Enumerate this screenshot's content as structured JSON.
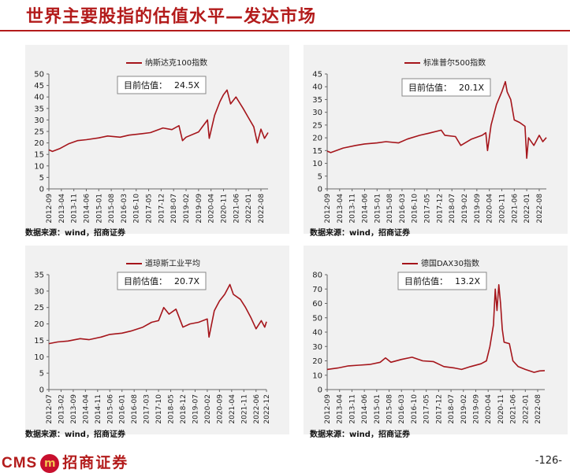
{
  "page": {
    "title": "世界主要股指的估值水平—发达市场",
    "source_note": "数据来源：wind，招商证券",
    "page_number": "-126-",
    "logo": {
      "en": "CMS",
      "badge": "m",
      "cn": "招商证券"
    },
    "colors": {
      "brand": "#b31b1b",
      "series": "#a5151b",
      "panel": "#f1f1f1"
    }
  },
  "chart_data": [
    {
      "type": "line",
      "title": "",
      "legend": "纳斯达克100指数",
      "value_label": "目前估值：",
      "value_text": "24.5X",
      "yticks": [
        0,
        5,
        10,
        15,
        20,
        25,
        30,
        35,
        40,
        45,
        50
      ],
      "ylim": [
        0,
        50
      ],
      "xlim": [
        "2012-09",
        "2022-12"
      ],
      "xticks": [
        "2012-09",
        "2013-04",
        "2013-11",
        "2014-06",
        "2015-01",
        "2015-08",
        "2016-03",
        "2016-10",
        "2017-05",
        "2017-12",
        "2018-07",
        "2019-02",
        "2019-09",
        "2020-04",
        "2020-11",
        "2021-06",
        "2022-01",
        "2022-08"
      ],
      "series": [
        {
          "values": [
            [
              "2012-09",
              17
            ],
            [
              "2012-11",
              16.3
            ],
            [
              "2013-03",
              17.5
            ],
            [
              "2013-08",
              19.6
            ],
            [
              "2014-01",
              21
            ],
            [
              "2014-06",
              21.4
            ],
            [
              "2015-01",
              22.2
            ],
            [
              "2015-06",
              23
            ],
            [
              "2016-01",
              22.5
            ],
            [
              "2016-06",
              23.4
            ],
            [
              "2017-01",
              24
            ],
            [
              "2017-06",
              24.5
            ],
            [
              "2018-01",
              26.5
            ],
            [
              "2018-06",
              25.8
            ],
            [
              "2018-10",
              27.5
            ],
            [
              "2018-12",
              21
            ],
            [
              "2019-02",
              22.5
            ],
            [
              "2019-09",
              24.8
            ],
            [
              "2020-02",
              30
            ],
            [
              "2020-03",
              22
            ],
            [
              "2020-06",
              32
            ],
            [
              "2020-09",
              38
            ],
            [
              "2020-11",
              41
            ],
            [
              "2021-01",
              43
            ],
            [
              "2021-03",
              37
            ],
            [
              "2021-06",
              40
            ],
            [
              "2021-10",
              35
            ],
            [
              "2022-01",
              31
            ],
            [
              "2022-04",
              27
            ],
            [
              "2022-06",
              20
            ],
            [
              "2022-08",
              26
            ],
            [
              "2022-10",
              22
            ],
            [
              "2022-12",
              24.5
            ]
          ]
        }
      ]
    },
    {
      "type": "line",
      "title": "",
      "legend": "标准普尔500指数",
      "value_label": "目前估值：",
      "value_text": "20.1X",
      "yticks": [
        0,
        5,
        10,
        15,
        20,
        25,
        30,
        35,
        40,
        45
      ],
      "ylim": [
        0,
        45
      ],
      "xlim": [
        "2012-09",
        "2022-12"
      ],
      "xticks": [
        "2012-09",
        "2013-04",
        "2013-11",
        "2014-06",
        "2015-01",
        "2015-08",
        "2016-03",
        "2016-10",
        "2017-05",
        "2017-12",
        "2018-07",
        "2019-02",
        "2019-09",
        "2020-04",
        "2020-11",
        "2021-06",
        "2022-01",
        "2022-08"
      ],
      "series": [
        {
          "values": [
            [
              "2012-09",
              14.8
            ],
            [
              "2012-11",
              14.2
            ],
            [
              "2013-06",
              16
            ],
            [
              "2014-01",
              17
            ],
            [
              "2014-06",
              17.6
            ],
            [
              "2015-01",
              18
            ],
            [
              "2015-06",
              18.5
            ],
            [
              "2016-01",
              18
            ],
            [
              "2016-06",
              19.5
            ],
            [
              "2017-01",
              21
            ],
            [
              "2017-06",
              21.8
            ],
            [
              "2018-01",
              23
            ],
            [
              "2018-03",
              21
            ],
            [
              "2018-09",
              20.5
            ],
            [
              "2018-12",
              17
            ],
            [
              "2019-06",
              19.5
            ],
            [
              "2019-12",
              21
            ],
            [
              "2020-02",
              22
            ],
            [
              "2020-03",
              15
            ],
            [
              "2020-05",
              25
            ],
            [
              "2020-08",
              33
            ],
            [
              "2020-11",
              38
            ],
            [
              "2021-01",
              42
            ],
            [
              "2021-02",
              38
            ],
            [
              "2021-04",
              35
            ],
            [
              "2021-06",
              27
            ],
            [
              "2021-09",
              26
            ],
            [
              "2021-12",
              24.5
            ],
            [
              "2022-01",
              12
            ],
            [
              "2022-02",
              20
            ],
            [
              "2022-05",
              17
            ],
            [
              "2022-08",
              21
            ],
            [
              "2022-10",
              18.5
            ],
            [
              "2022-12",
              20.1
            ]
          ]
        }
      ]
    },
    {
      "type": "line",
      "title": "",
      "legend": "道琼斯工业平均",
      "value_label": "目前估值：",
      "value_text": "20.7X",
      "yticks": [
        0,
        5,
        10,
        15,
        20,
        25,
        30,
        35
      ],
      "ylim": [
        0,
        35
      ],
      "xlim": [
        "2012-07",
        "2022-12"
      ],
      "xticks": [
        "2012-07",
        "2013-02",
        "2013-09",
        "2014-04",
        "2014-11",
        "2015-06",
        "2016-01",
        "2016-08",
        "2017-03",
        "2017-10",
        "2018-05",
        "2018-12",
        "2019-07",
        "2020-02",
        "2020-09",
        "2021-04",
        "2021-11",
        "2022-06",
        "2022-12"
      ],
      "series": [
        {
          "values": [
            [
              "2012-07",
              14
            ],
            [
              "2012-12",
              14.5
            ],
            [
              "2013-06",
              14.8
            ],
            [
              "2014-01",
              15.5
            ],
            [
              "2014-06",
              15.2
            ],
            [
              "2015-01",
              16
            ],
            [
              "2015-06",
              16.8
            ],
            [
              "2016-01",
              17.2
            ],
            [
              "2016-06",
              17.8
            ],
            [
              "2017-01",
              19
            ],
            [
              "2017-06",
              20.5
            ],
            [
              "2017-10",
              21
            ],
            [
              "2018-01",
              25
            ],
            [
              "2018-04",
              23
            ],
            [
              "2018-08",
              24.5
            ],
            [
              "2018-12",
              19
            ],
            [
              "2019-04",
              20
            ],
            [
              "2019-09",
              20.5
            ],
            [
              "2020-02",
              21.5
            ],
            [
              "2020-03",
              16
            ],
            [
              "2020-06",
              24
            ],
            [
              "2020-09",
              27
            ],
            [
              "2020-12",
              29
            ],
            [
              "2021-03",
              32
            ],
            [
              "2021-05",
              29
            ],
            [
              "2021-09",
              27.5
            ],
            [
              "2021-12",
              25
            ],
            [
              "2022-03",
              22
            ],
            [
              "2022-06",
              18.5
            ],
            [
              "2022-09",
              21
            ],
            [
              "2022-11",
              19
            ],
            [
              "2022-12",
              20.7
            ]
          ]
        }
      ]
    },
    {
      "type": "line",
      "title": "",
      "legend": "德国DAX30指数",
      "value_label": "目前估值：",
      "value_text": "13.2X",
      "yticks": [
        0,
        10,
        20,
        30,
        40,
        50,
        60,
        70,
        80
      ],
      "ylim": [
        0,
        80
      ],
      "xlim": [
        "2012-09",
        "2022-12"
      ],
      "xticks": [
        "2012-09",
        "2013-04",
        "2013-11",
        "2014-06",
        "2015-01",
        "2015-08",
        "2016-03",
        "2016-10",
        "2017-05",
        "2017-12",
        "2018-07",
        "2019-02",
        "2019-09",
        "2020-04",
        "2020-11",
        "2021-06",
        "2022-01",
        "2022-08"
      ],
      "series": [
        {
          "values": [
            [
              "2012-09",
              14
            ],
            [
              "2013-03",
              15
            ],
            [
              "2013-09",
              16.5
            ],
            [
              "2014-03",
              17
            ],
            [
              "2014-09",
              17.5
            ],
            [
              "2015-03",
              19
            ],
            [
              "2015-06",
              22
            ],
            [
              "2015-09",
              19
            ],
            [
              "2016-03",
              21
            ],
            [
              "2016-09",
              22.5
            ],
            [
              "2017-03",
              20
            ],
            [
              "2017-09",
              19.5
            ],
            [
              "2018-03",
              16
            ],
            [
              "2018-09",
              15
            ],
            [
              "2019-01",
              14
            ],
            [
              "2019-06",
              16
            ],
            [
              "2019-12",
              18
            ],
            [
              "2020-03",
              20
            ],
            [
              "2020-05",
              30
            ],
            [
              "2020-07",
              45
            ],
            [
              "2020-08",
              70
            ],
            [
              "2020-09",
              55
            ],
            [
              "2020-10",
              73
            ],
            [
              "2020-11",
              60
            ],
            [
              "2020-12",
              42
            ],
            [
              "2021-01",
              33
            ],
            [
              "2021-04",
              32
            ],
            [
              "2021-06",
              20
            ],
            [
              "2021-09",
              16
            ],
            [
              "2022-01",
              14
            ],
            [
              "2022-06",
              12
            ],
            [
              "2022-09",
              13
            ],
            [
              "2022-12",
              13.2
            ]
          ]
        }
      ]
    }
  ]
}
